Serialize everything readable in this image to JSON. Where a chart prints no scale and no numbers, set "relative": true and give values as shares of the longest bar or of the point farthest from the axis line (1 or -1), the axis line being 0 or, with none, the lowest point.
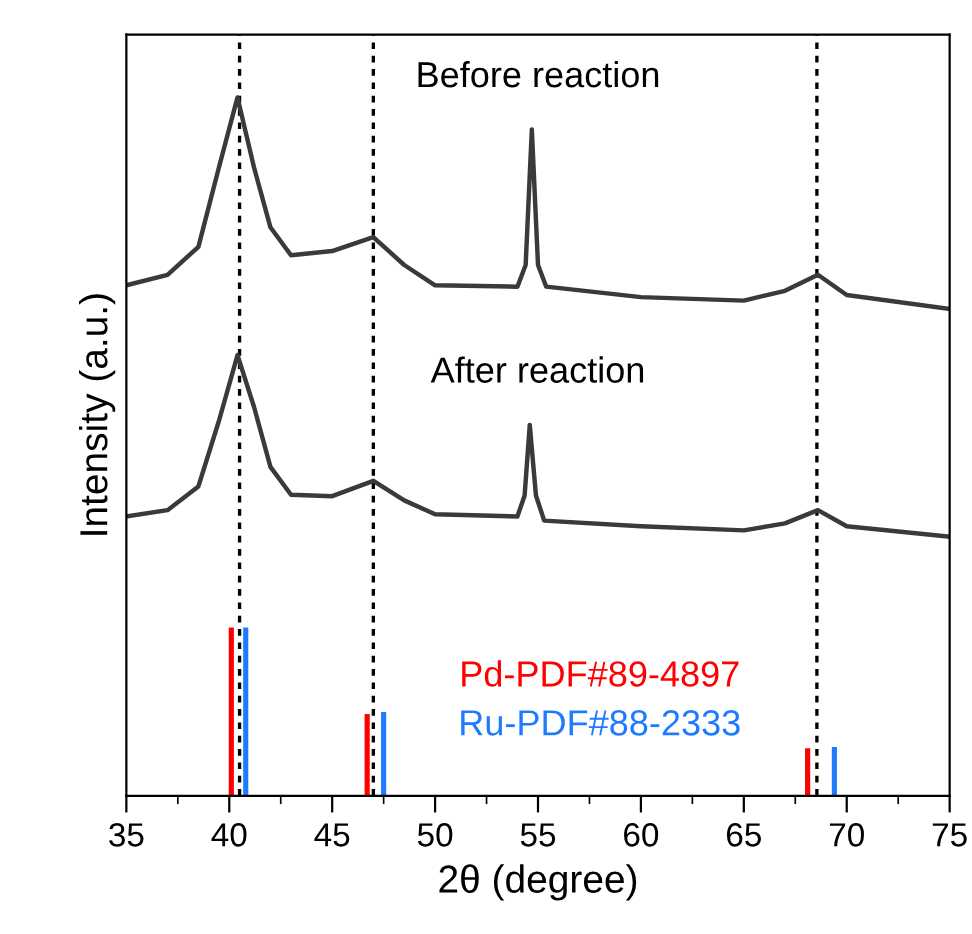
{
  "chart_data": {
    "type": "line",
    "relative": true,
    "xlabel": "2θ (degree)",
    "ylabel": "Intensity (a.u.)",
    "xlim": [
      35,
      75
    ],
    "xticks": [
      35,
      40,
      45,
      50,
      55,
      60,
      65,
      70,
      75
    ],
    "grid": false,
    "legend": false,
    "marker": "none",
    "line_style": "solid",
    "series": [
      {
        "name": "Before reaction",
        "color": "#3a3a3a",
        "x": [
          35,
          37,
          38.5,
          39.5,
          40.4,
          41.2,
          42,
          43,
          45,
          47,
          48.5,
          50,
          54,
          54.4,
          54.7,
          55.0,
          55.4,
          60,
          65,
          67,
          68.6,
          70,
          75
        ],
        "values": [
          0.731,
          0.746,
          0.786,
          0.9,
          1.0,
          0.9,
          0.814,
          0.774,
          0.78,
          0.8,
          0.76,
          0.731,
          0.729,
          0.76,
          0.954,
          0.76,
          0.729,
          0.714,
          0.709,
          0.723,
          0.746,
          0.717,
          0.697
        ]
      },
      {
        "name": "After reaction",
        "color": "#3a3a3a",
        "x": [
          35,
          37,
          38.5,
          39.5,
          40.4,
          41.2,
          42,
          43,
          45,
          47,
          48.5,
          50,
          54,
          54.35,
          54.6,
          54.9,
          55.3,
          60,
          65,
          67,
          68.6,
          70,
          75
        ],
        "values": [
          0.4,
          0.409,
          0.443,
          0.537,
          0.631,
          0.557,
          0.471,
          0.431,
          0.429,
          0.451,
          0.423,
          0.403,
          0.4,
          0.43,
          0.531,
          0.43,
          0.394,
          0.386,
          0.38,
          0.39,
          0.409,
          0.386,
          0.371
        ]
      },
      {
        "name": "Pd-PDF#89-4897",
        "type": "bar",
        "color": "#ff0000",
        "x": [
          40.1,
          46.7,
          68.1
        ],
        "values": [
          0.241,
          0.117,
          0.068
        ]
      },
      {
        "name": "Ru-PDF#88-2333",
        "type": "bar",
        "color": "#1e7bff",
        "x": [
          40.8,
          47.5,
          69.4
        ],
        "values": [
          0.241,
          0.12,
          0.07
        ]
      }
    ],
    "ref_lines": [
      {
        "axis": "x",
        "value": 40.5,
        "color": "#000000",
        "line_style": "dotted"
      },
      {
        "axis": "x",
        "value": 47.0,
        "color": "#000000",
        "line_style": "dotted"
      },
      {
        "axis": "x",
        "value": 68.55,
        "color": "#000000",
        "line_style": "dotted"
      }
    ]
  }
}
